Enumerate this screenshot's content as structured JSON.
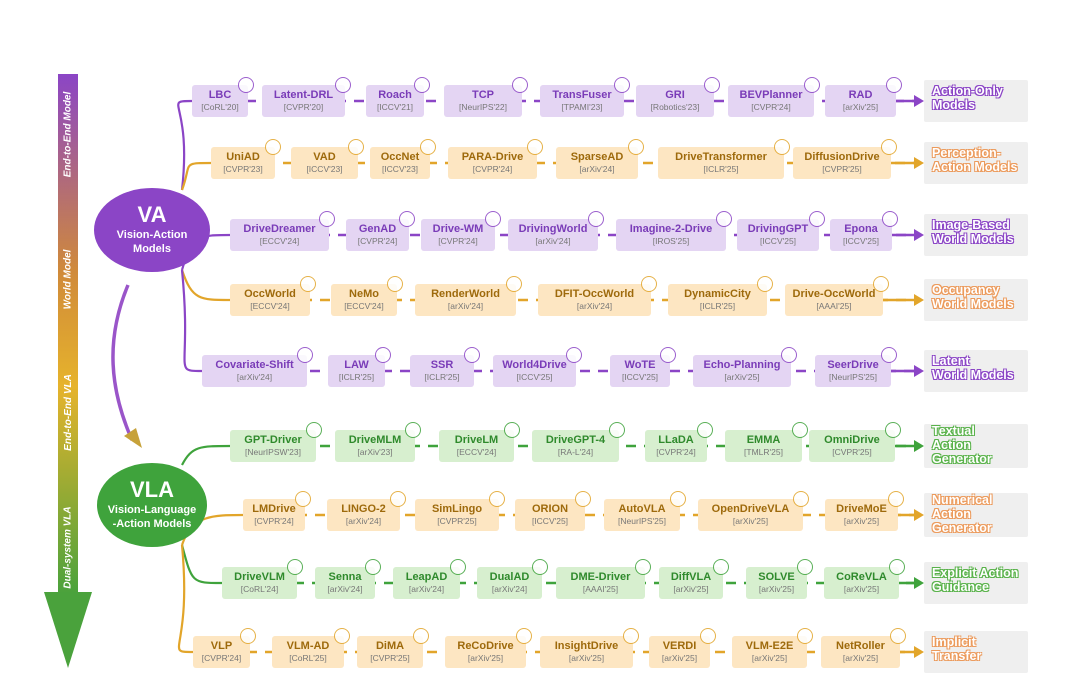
{
  "colors": {
    "purple": "#8b45c6",
    "purple_fill": "#e4d5f3",
    "purple_text": "#7a3cb8",
    "orange": "#e2a52a",
    "orange_fill": "#fde6c2",
    "orange_text": "#9e6a0c",
    "green": "#3fa33c",
    "green_fill": "#d7efcf",
    "green_text": "#2f8a2c",
    "label_purple": "#8b45c6",
    "label_orange": "#ec9a5b",
    "label_green": "#59b24a"
  },
  "hubs": {
    "va": {
      "title": "VA",
      "subtitle_1": "Vision-Action",
      "subtitle_2": "Models"
    },
    "vla": {
      "title": "VLA",
      "subtitle_1": "Vision-Language",
      "subtitle_2": "-Action Models"
    }
  },
  "timeline_phases": [
    "End-to-End Model",
    "World Model",
    "End-to-End VLA",
    "Dual-system VLA"
  ],
  "rows": [
    {
      "label_line1": "Action-Only",
      "label_line2": "Models",
      "label_line3": "",
      "scheme": "purple",
      "nodes": [
        {
          "name": "LBC",
          "venue": "[CoRL'20]",
          "logo": "university-seal-icon"
        },
        {
          "name": "Latent-DRL",
          "venue": "[CVPR'20]",
          "logo": "university-seal-icon"
        },
        {
          "name": "Roach",
          "venue": "[ICCV'21]",
          "logo": "eth-zurich-logo"
        },
        {
          "name": "TCP",
          "venue": "[NeurIPS'22]",
          "logo": "university-seal-icon"
        },
        {
          "name": "TransFuser",
          "venue": "[TPAMI'23]",
          "logo": "university-seal-icon"
        },
        {
          "name": "GRI",
          "venue": "[Robotics'23]",
          "logo": "company-logo"
        },
        {
          "name": "BEVPlanner",
          "venue": "[CVPR'24]",
          "logo": "university-seal-icon"
        },
        {
          "name": "RAD",
          "venue": "[arXiv'25]",
          "logo": "university-seal-icon"
        }
      ]
    },
    {
      "label_line1": "Perception-",
      "label_line2": "Action Models",
      "label_line3": "",
      "scheme": "orange",
      "nodes": [
        {
          "name": "UniAD",
          "venue": "[CVPR'23]",
          "logo": "company-logo"
        },
        {
          "name": "VAD",
          "venue": "[ICCV'23]",
          "logo": "university-seal-icon"
        },
        {
          "name": "OccNet",
          "venue": "[ICCV'23]",
          "logo": "university-seal-icon"
        },
        {
          "name": "PARA-Drive",
          "venue": "[CVPR'24]",
          "logo": "nvidia-logo"
        },
        {
          "name": "SparseAD",
          "venue": "[arXiv'24]",
          "logo": "university-seal-icon"
        },
        {
          "name": "DriveTransformer",
          "venue": "[ICLR'25]",
          "logo": "university-seal-icon"
        },
        {
          "name": "DiffusionDrive",
          "venue": "[CVPR'25]",
          "logo": "university-seal-icon"
        }
      ]
    },
    {
      "label_line1": "Image-Based",
      "label_line2": "World Models",
      "label_line3": "",
      "scheme": "purple",
      "nodes": [
        {
          "name": "DriveDreamer",
          "venue": "[ECCV'24]",
          "logo": "company-logo"
        },
        {
          "name": "GenAD",
          "venue": "[CVPR'24]",
          "logo": "company-logo"
        },
        {
          "name": "Drive-WM",
          "venue": "[CVPR'24]",
          "logo": "company-logo"
        },
        {
          "name": "DrivingWorld",
          "venue": "[arXiv'24]",
          "logo": "university-seal-icon"
        },
        {
          "name": "Imagine-2-Drive",
          "venue": "[IROS'25]",
          "logo": "company-logo"
        },
        {
          "name": "DrivingGPT",
          "venue": "[ICCV'25]",
          "logo": "company-logo"
        },
        {
          "name": "Epona",
          "venue": "[ICCV'25]",
          "logo": "university-seal-icon"
        }
      ]
    },
    {
      "label_line1": "Occupancy",
      "label_line2": "World Models",
      "label_line3": "",
      "scheme": "orange",
      "nodes": [
        {
          "name": "OccWorld",
          "venue": "[ECCV'24]",
          "logo": "university-seal-icon"
        },
        {
          "name": "NeMo",
          "venue": "[ECCV'24]",
          "logo": "university-seal-icon"
        },
        {
          "name": "RenderWorld",
          "venue": "[arXiv'24]",
          "logo": "university-seal-icon"
        },
        {
          "name": "DFIT-OccWorld",
          "venue": "[arXiv'24]",
          "logo": "university-seal-icon"
        },
        {
          "name": "DynamicCity",
          "venue": "[ICLR'25]",
          "logo": "company-logo"
        },
        {
          "name": "Drive-OccWorld",
          "venue": "[AAAI'25]",
          "logo": "university-seal-icon"
        }
      ]
    },
    {
      "label_line1": "Latent",
      "label_line2": "World Models",
      "label_line3": "",
      "scheme": "purple",
      "nodes": [
        {
          "name": "Covariate-Shift",
          "venue": "[arXiv'24]",
          "logo": "nvidia-logo"
        },
        {
          "name": "LAW",
          "venue": "[ICLR'25]",
          "logo": "company-logo"
        },
        {
          "name": "SSR",
          "venue": "[ICLR'25]",
          "logo": "company-logo"
        },
        {
          "name": "World4Drive",
          "venue": "[ICCV'25]",
          "logo": "company-logo"
        },
        {
          "name": "WoTE",
          "venue": "[ICCV'25]",
          "logo": "company-logo"
        },
        {
          "name": "Echo-Planning",
          "venue": "[arXiv'25]",
          "logo": "university-seal-icon"
        },
        {
          "name": "SeerDrive",
          "venue": "[NeurIPS'25]",
          "logo": "university-seal-icon"
        }
      ]
    },
    {
      "label_line1": "Textual",
      "label_line2": "Action",
      "label_line3": "Generator",
      "scheme": "green",
      "nodes": [
        {
          "name": "GPT-Driver",
          "venue": "[NeurIPSW'23]",
          "logo": "university-seal-icon"
        },
        {
          "name": "DriveMLM",
          "venue": "[arXiv'23]",
          "logo": "university-seal-icon"
        },
        {
          "name": "DriveLM",
          "venue": "[ECCV'24]",
          "logo": "university-seal-icon"
        },
        {
          "name": "DriveGPT-4",
          "venue": "[RA-L'24]",
          "logo": "university-seal-icon"
        },
        {
          "name": "LLaDA",
          "venue": "[CVPR'24]",
          "logo": "nvidia-logo"
        },
        {
          "name": "EMMA",
          "venue": "[TMLR'25]",
          "logo": "waymo-logo"
        },
        {
          "name": "OmniDrive",
          "venue": "[CVPR'25]",
          "logo": "nvidia-logo"
        }
      ]
    },
    {
      "label_line1": "Numerical",
      "label_line2": "Action",
      "label_line3": "Generator",
      "scheme": "orange",
      "nodes": [
        {
          "name": "LMDrive",
          "venue": "[CVPR'24]",
          "logo": "university-seal-icon"
        },
        {
          "name": "LINGO-2",
          "venue": "[arXiv'24]",
          "logo": "company-logo"
        },
        {
          "name": "SimLingo",
          "venue": "[CVPR'25]",
          "logo": "university-seal-icon"
        },
        {
          "name": "ORION",
          "venue": "[ICCV'25]",
          "logo": "university-seal-icon"
        },
        {
          "name": "AutoVLA",
          "venue": "[NeurIPS'25]",
          "logo": "university-seal-icon"
        },
        {
          "name": "OpenDriveVLA",
          "venue": "[arXiv'25]",
          "logo": "tum-logo"
        },
        {
          "name": "DriveMoE",
          "venue": "[arXiv'25]",
          "logo": "university-seal-icon"
        }
      ]
    },
    {
      "label_line1": "Explicit Action",
      "label_line2": "Guidance",
      "label_line3": "",
      "scheme": "green",
      "nodes": [
        {
          "name": "DriveVLM",
          "venue": "[CoRL'24]",
          "logo": "university-seal-icon"
        },
        {
          "name": "Senna",
          "venue": "[arXiv'24]",
          "logo": "company-logo"
        },
        {
          "name": "LeapAD",
          "venue": "[arXiv'24]",
          "logo": "university-seal-icon"
        },
        {
          "name": "DualAD",
          "venue": "[arXiv'24]",
          "logo": "tum-logo"
        },
        {
          "name": "DME-Driver",
          "venue": "[AAAI'25]",
          "logo": "university-seal-icon"
        },
        {
          "name": "DiffVLA",
          "venue": "[arXiv'25]",
          "logo": "bosch-logo"
        },
        {
          "name": "SOLVE",
          "venue": "[arXiv'25]",
          "logo": "university-seal-icon"
        },
        {
          "name": "CoReVLA",
          "venue": "[arXiv'25]",
          "logo": "university-seal-icon"
        }
      ]
    },
    {
      "label_line1": "Implicit",
      "label_line2": "Transfer",
      "label_line3": "",
      "scheme": "orange",
      "nodes": [
        {
          "name": "VLP",
          "venue": "[CVPR'24]",
          "logo": "company-logo"
        },
        {
          "name": "VLM-AD",
          "venue": "[CoRL'25]",
          "logo": "university-seal-icon"
        },
        {
          "name": "DiMA",
          "venue": "[CVPR'25]",
          "logo": "university-seal-icon"
        },
        {
          "name": "ReCoDrive",
          "venue": "[arXiv'25]",
          "logo": "university-seal-icon"
        },
        {
          "name": "InsightDrive",
          "venue": "[arXiv'25]",
          "logo": "company-logo"
        },
        {
          "name": "VERDI",
          "venue": "[arXiv'25]",
          "logo": "university-seal-icon"
        },
        {
          "name": "VLM-E2E",
          "venue": "[arXiv'25]",
          "logo": "university-seal-icon"
        },
        {
          "name": "NetRoller",
          "venue": "[arXiv'25]",
          "logo": "university-seal-icon"
        }
      ]
    }
  ]
}
